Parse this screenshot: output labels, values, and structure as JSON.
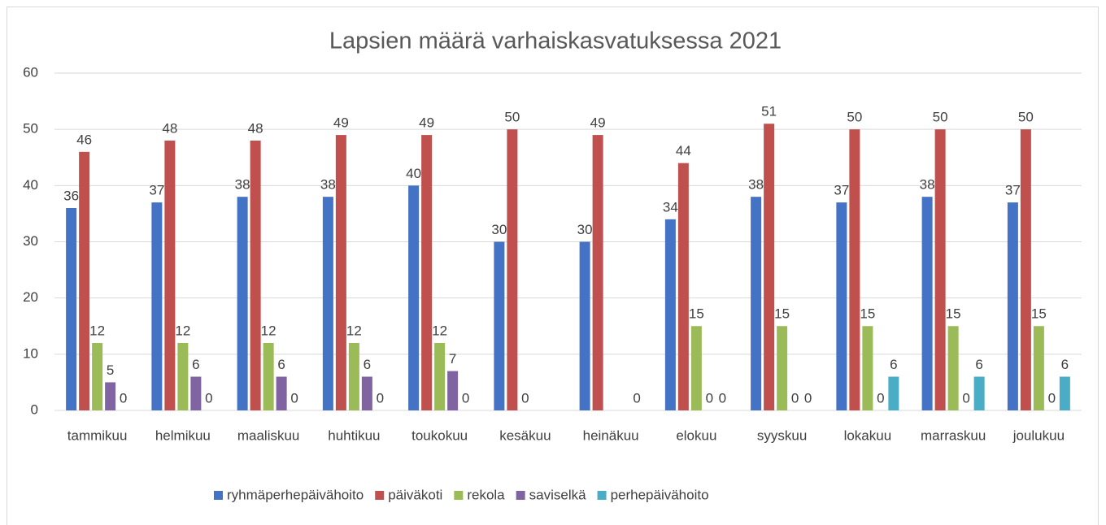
{
  "chart_data": {
    "type": "bar",
    "title": "Lapsien määrä varhaiskasvatuksessa 2021",
    "categories": [
      "tammikuu",
      "helmikuu",
      "maaliskuu",
      "huhtikuu",
      "toukokuu",
      "kesäkuu",
      "heinäkuu",
      "elokuu",
      "syyskuu",
      "lokakuu",
      "marraskuu",
      "joulukuu"
    ],
    "series": [
      {
        "name": "ryhmäperhepäivähoito",
        "color": "#4472c4",
        "values": [
          36,
          37,
          38,
          38,
          40,
          30,
          30,
          34,
          38,
          37,
          38,
          37
        ]
      },
      {
        "name": "päiväkoti",
        "color": "#c0504d",
        "values": [
          46,
          48,
          48,
          49,
          49,
          50,
          49,
          44,
          51,
          50,
          50,
          50
        ]
      },
      {
        "name": "rekola",
        "color": "#9bbb59",
        "values": [
          12,
          12,
          12,
          12,
          12,
          0,
          null,
          15,
          15,
          15,
          15,
          15
        ]
      },
      {
        "name": "saviselkä",
        "color": "#8064a2",
        "values": [
          5,
          6,
          6,
          6,
          7,
          null,
          null,
          0,
          0,
          0,
          0,
          0
        ]
      },
      {
        "name": "perhepäivähoito",
        "color": "#4bacc6",
        "values": [
          0,
          0,
          0,
          0,
          0,
          null,
          0,
          0,
          0,
          6,
          6,
          6
        ]
      }
    ],
    "ylim": [
      0,
      60
    ],
    "yticks": [
      0,
      10,
      20,
      30,
      40,
      50,
      60
    ],
    "grid": true,
    "legend": "bottom"
  }
}
